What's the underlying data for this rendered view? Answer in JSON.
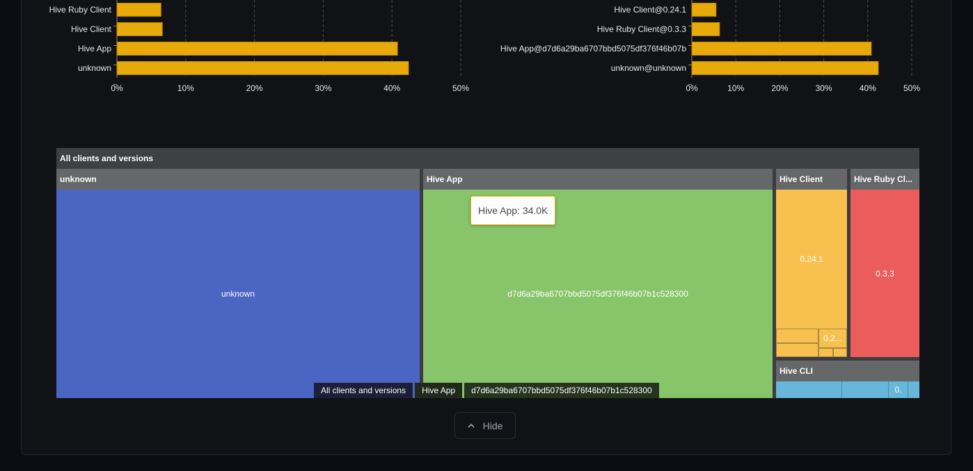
{
  "chart_data": [
    {
      "type": "bar",
      "orientation": "horizontal",
      "categories": [
        "Hive Ruby Client",
        "Hive Client",
        "Hive App",
        "unknown"
      ],
      "values": [
        6.4,
        6.6,
        40.8,
        42.4
      ],
      "xlim": [
        0,
        50
      ],
      "xticks": [
        "0%",
        "10%",
        "20%",
        "30%",
        "40%",
        "50%"
      ],
      "grid": true,
      "color": "#e8a90a"
    },
    {
      "type": "bar",
      "orientation": "horizontal",
      "categories": [
        "Hive Client@0.24.1",
        "Hive Ruby Client@0.3.3",
        "Hive App@d7d6a29ba6707bbd5075df376f46b07b",
        "unknown@unknown"
      ],
      "values": [
        5.5,
        6.3,
        40.8,
        42.4
      ],
      "xlim": [
        0,
        50
      ],
      "xticks": [
        "0%",
        "10%",
        "20%",
        "30%",
        "40%",
        "50%"
      ],
      "grid": true,
      "color": "#e8a90a"
    }
  ],
  "treemap": {
    "root": "All clients and versions",
    "groups": [
      {
        "name": "unknown",
        "color": "#4b65c2",
        "children": [
          "unknown"
        ]
      },
      {
        "name": "Hive App",
        "color": "#88c56a",
        "children": [
          "d7d6a29ba6707bbd5075df376f46b07b1c528300"
        ]
      },
      {
        "name": "Hive Client",
        "color": "#f8c14f",
        "children": [
          "0.24.1",
          "0.2..."
        ]
      },
      {
        "name": "Hive Ruby Cl...",
        "color": "#eb5c5c",
        "children": [
          "0.3.3"
        ]
      },
      {
        "name": "Hive CLI",
        "color": "#66b7d9",
        "children": [
          "",
          "",
          "0.",
          ""
        ]
      }
    ],
    "tooltip": "Hive App: 34.0K",
    "breadcrumb": [
      "All clients and versions",
      "Hive App",
      "d7d6a29ba6707bbd5075df376f46b07b1c528300"
    ]
  },
  "hide_button": {
    "label": "Hide",
    "icon": "chevron-up-icon"
  }
}
